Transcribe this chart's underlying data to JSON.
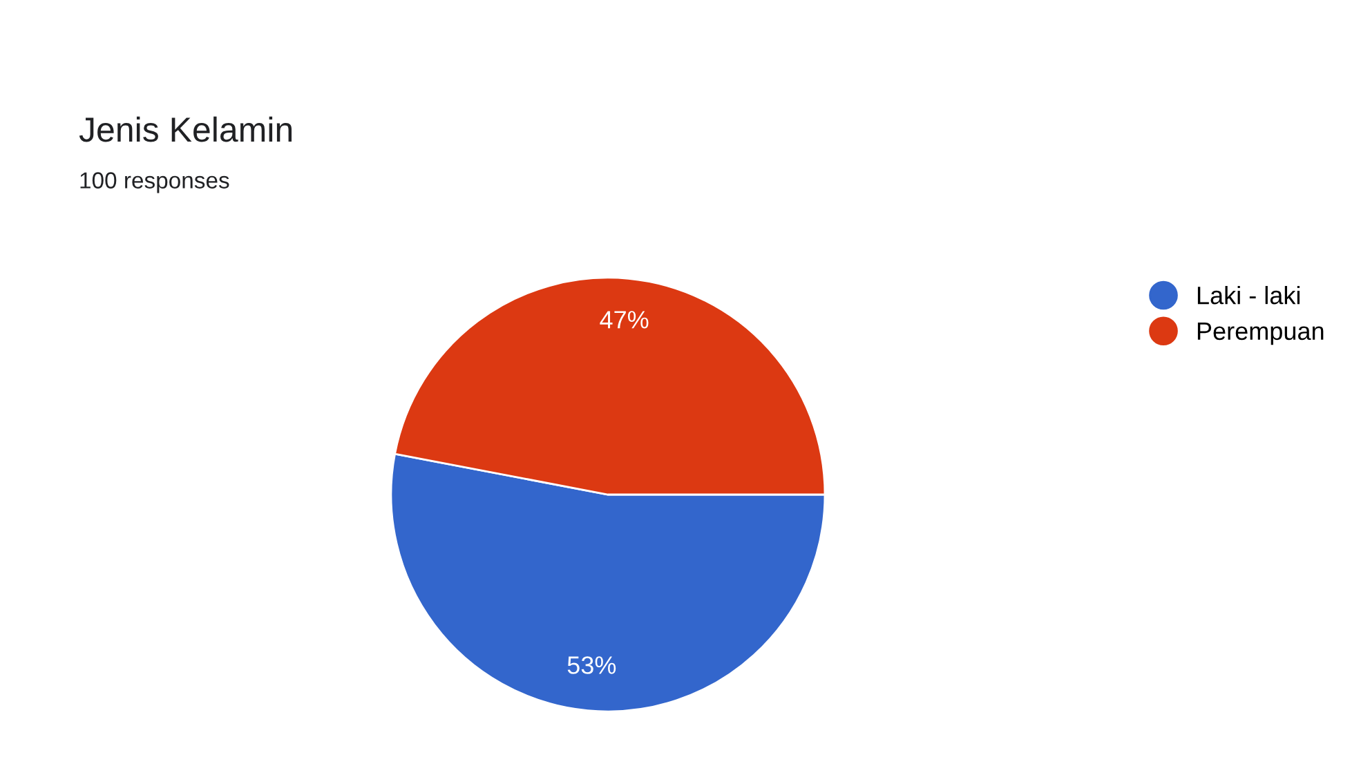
{
  "chart_data": {
    "type": "pie",
    "title": "Jenis Kelamin",
    "subtitle": "100 responses",
    "categories": [
      "Laki - laki",
      "Perempuan"
    ],
    "values": [
      53,
      47
    ],
    "colors": [
      "#3366cc",
      "#dc3912"
    ],
    "value_labels": [
      "53%",
      "47%"
    ],
    "legend": "top right"
  }
}
